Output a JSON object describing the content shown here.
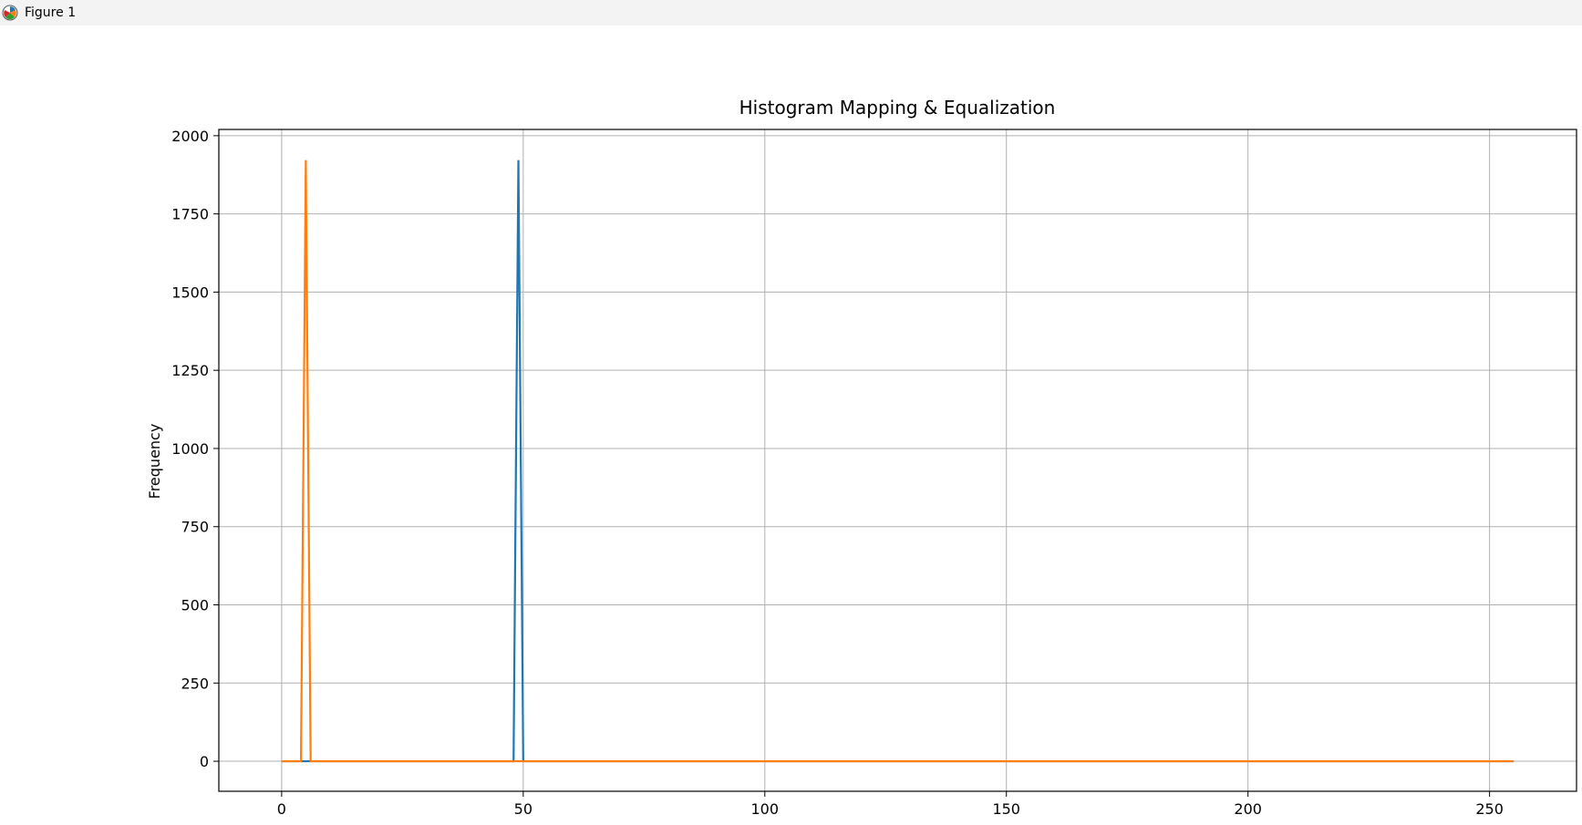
{
  "window": {
    "title": "Figure 1",
    "icon": "matplotlib-logo-icon"
  },
  "chart_data": {
    "type": "line",
    "title": "Histogram Mapping & Equalization",
    "xlabel": "",
    "ylabel": "Frequency",
    "xlim": [
      -13,
      268
    ],
    "ylim": [
      -96,
      2020
    ],
    "xticks": [
      0,
      50,
      100,
      150,
      200,
      250
    ],
    "yticks": [
      0,
      250,
      500,
      750,
      1000,
      1250,
      1500,
      1750,
      2000
    ],
    "grid": true,
    "legend": null,
    "x_range": [
      0,
      255
    ],
    "series": [
      {
        "color": "#1f77b4",
        "peaks": [
          {
            "x": 49,
            "y": 1922
          }
        ]
      },
      {
        "color": "#ff7f0e",
        "peaks": [
          {
            "x": 5,
            "y": 1922
          }
        ]
      }
    ]
  }
}
